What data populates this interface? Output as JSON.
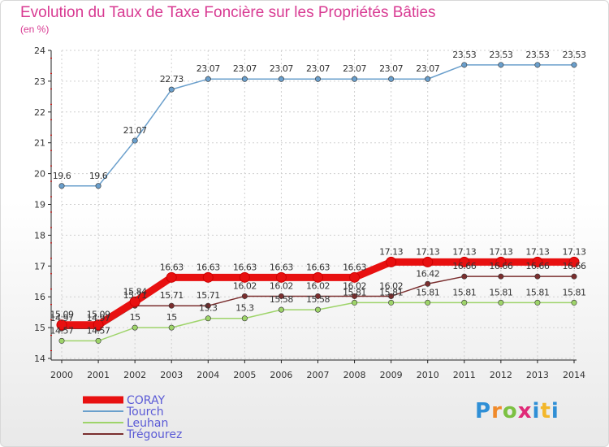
{
  "chart_data": {
    "type": "line",
    "title": "Evolution du Taux de Taxe Foncière sur les Propriétés Bâties",
    "ylabel": "(en %)",
    "ylim": [
      14,
      24
    ],
    "yticks": [
      "14",
      "15",
      "16",
      "17",
      "18",
      "19",
      "20",
      "21",
      "22",
      "23",
      "24"
    ],
    "categories": [
      "2000",
      "2001",
      "2002",
      "2003",
      "2004",
      "2005",
      "2006",
      "2007",
      "2008",
      "2009",
      "2010",
      "2011",
      "2012",
      "2013",
      "2014"
    ],
    "series": [
      {
        "name": "CORAY",
        "color": "#e81010",
        "values": [
          15.09,
          15.09,
          15.84,
          16.63,
          16.63,
          16.63,
          16.63,
          16.63,
          16.63,
          17.13,
          17.13,
          17.13,
          17.13,
          17.13,
          17.13
        ],
        "labels": [
          "15.09",
          "15.09",
          "15.84",
          "16.63",
          "16.63",
          "16.63",
          "16.63",
          "16.63",
          "16.63",
          "17.13",
          "17.13",
          "17.13",
          "17.13",
          "17.13",
          "17.13"
        ]
      },
      {
        "name": "Tourch",
        "color": "#6a9fcc",
        "values": [
          19.6,
          19.6,
          21.07,
          22.73,
          23.07,
          23.07,
          23.07,
          23.07,
          23.07,
          23.07,
          23.07,
          23.53,
          23.53,
          23.53,
          23.53
        ],
        "labels": [
          "19.6",
          "19.6",
          "21.07",
          "22.73",
          "23.07",
          "23.07",
          "23.07",
          "23.07",
          "23.07",
          "23.07",
          "23.07",
          "23.53",
          "23.53",
          "23.53",
          "23.53"
        ]
      },
      {
        "name": "Leuhan",
        "color": "#9ed46a",
        "values": [
          14.57,
          14.57,
          15,
          15,
          15.3,
          15.3,
          15.58,
          15.58,
          15.81,
          15.81,
          15.81,
          15.81,
          15.81,
          15.81,
          15.81
        ],
        "labels": [
          "14.57",
          "14.57",
          "15",
          "15",
          "15.3",
          "15.3",
          "15.58",
          "15.58",
          "15.81",
          "15.81",
          "15.81",
          "15.81",
          "15.81",
          "15.81",
          "15.81"
        ]
      },
      {
        "name": "Trégourez",
        "color": "#7a2e2e",
        "values": [
          14.97,
          14.97,
          15.71,
          15.71,
          15.71,
          16.02,
          16.02,
          16.02,
          16.02,
          16.02,
          16.42,
          16.66,
          16.66,
          16.66,
          16.66
        ],
        "labels": [
          "14.97",
          "14.97",
          "15.71",
          "15.71",
          "15.71",
          "16.02",
          "16.02",
          "16.02",
          "16.02",
          "16.02",
          "16.42",
          "16.66",
          "16.66",
          "16.66",
          "16.66"
        ]
      }
    ]
  },
  "logo": {
    "p": "P",
    "r": "r",
    "o": "o",
    "x": "x",
    "i": "i",
    "t": "t",
    "i2": "i"
  }
}
